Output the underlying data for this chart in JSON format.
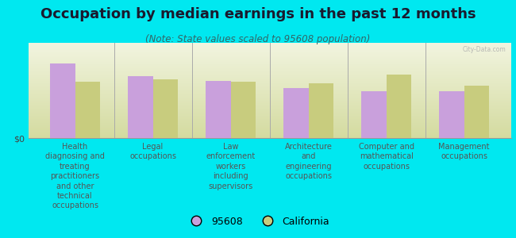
{
  "title": "Occupation by median earnings in the past 12 months",
  "subtitle": "(Note: State values scaled to 95608 population)",
  "categories": [
    "Health\ndiagnosing and\ntreating\npractitioners\nand other\ntechnical\noccupations",
    "Legal\noccupations",
    "Law\nenforcement\nworkers\nincluding\nsupervisors",
    "Architecture\nand\nengineering\noccupations",
    "Computer and\nmathematical\noccupations",
    "Management\noccupations"
  ],
  "values_95608": [
    0.82,
    0.68,
    0.63,
    0.55,
    0.52,
    0.52
  ],
  "values_california": [
    0.62,
    0.65,
    0.62,
    0.6,
    0.7,
    0.58
  ],
  "color_95608": "#c9a0dc",
  "color_california": "#c8cc7e",
  "background_color": "#00e8f0",
  "ylabel": "$0",
  "legend_label_95608": "95608",
  "legend_label_california": "California",
  "bar_width": 0.32,
  "title_fontsize": 13,
  "subtitle_fontsize": 8.5,
  "tick_fontsize": 7,
  "watermark": "City-Data.com"
}
